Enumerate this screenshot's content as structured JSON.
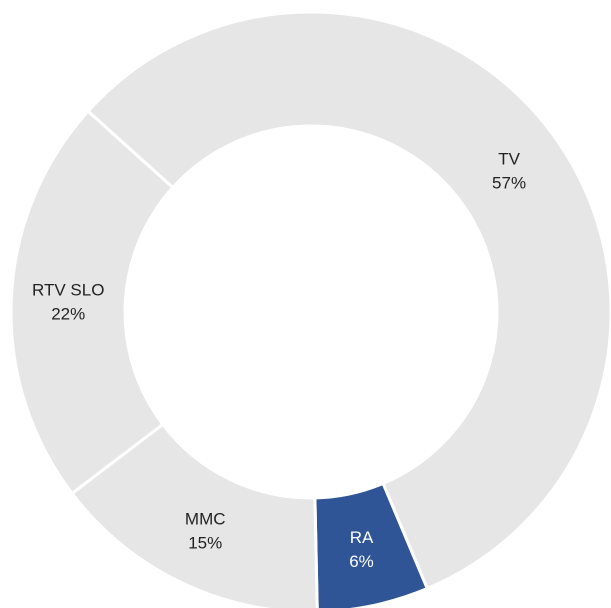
{
  "chart_data": {
    "type": "donut",
    "categories": [
      "TV",
      "RA",
      "MMC",
      "RTV SLO"
    ],
    "values": [
      57,
      6,
      15,
      22
    ],
    "value_labels": [
      "57%",
      "6%",
      "15%",
      "22%"
    ],
    "colors": [
      "#e6e6e6",
      "#2f5597",
      "#e6e6e6",
      "#e6e6e6"
    ],
    "label_colors": [
      "#222222",
      "#ffffff",
      "#222222",
      "#222222"
    ]
  }
}
